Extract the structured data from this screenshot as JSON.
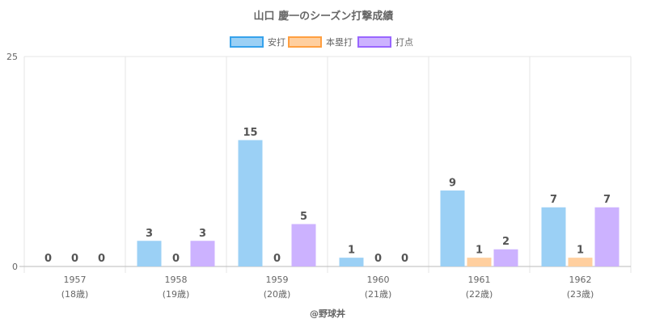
{
  "chart_data": {
    "type": "bar",
    "title": "山口 慶一のシーズン打撃成績",
    "categories": [
      "1957",
      "1958",
      "1959",
      "1960",
      "1961",
      "1962"
    ],
    "category_sublabels": [
      "(18歳)",
      "(19歳)",
      "(20歳)",
      "(21歳)",
      "(22歳)",
      "(23歳)"
    ],
    "series": [
      {
        "name": "安打",
        "values": [
          0,
          3,
          15,
          1,
          9,
          7
        ],
        "color": "#9bd0f5",
        "border": "#36a2eb"
      },
      {
        "name": "本塁打",
        "values": [
          0,
          0,
          0,
          0,
          1,
          1
        ],
        "color": "#ffcf9f",
        "border": "#ff9f40"
      },
      {
        "name": "打点",
        "values": [
          0,
          3,
          5,
          0,
          2,
          7
        ],
        "color": "#ccb2ff",
        "border": "#9966ff"
      }
    ],
    "ylim": [
      0,
      25
    ],
    "yticks": [
      "0",
      "25"
    ],
    "legend_position": "top",
    "grid": true,
    "data_labels": true
  },
  "credit": "@野球丼"
}
